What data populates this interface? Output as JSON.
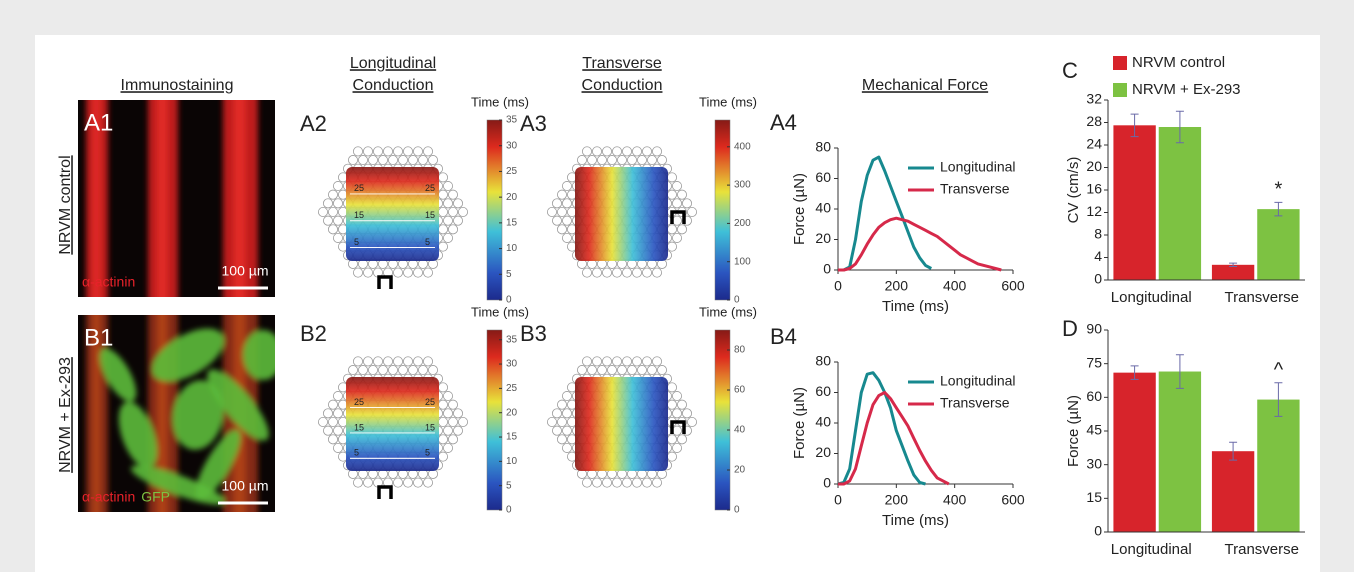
{
  "column_headers": [
    {
      "lines": [
        "Immunostaining"
      ]
    },
    {
      "lines": [
        "Longitudinal",
        "Conduction"
      ]
    },
    {
      "lines": [
        "Transverse",
        "Conduction"
      ]
    },
    {
      "lines": [
        "Mechanical Force"
      ]
    }
  ],
  "row_labels": [
    "NRVM control",
    "NRVM + Ex-293"
  ],
  "images": [
    {
      "label": "A1",
      "stains": [
        {
          "text": "α-actinin",
          "color": "#e8222a"
        }
      ],
      "scale_bar": "100 µm",
      "green": false
    },
    {
      "label": "B1",
      "stains": [
        {
          "text": "α-actinin",
          "color": "#e8222a"
        },
        {
          "text": "GFP",
          "color": "#7dc242"
        }
      ],
      "scale_bar": "100 µm",
      "green": true
    }
  ],
  "maps": [
    {
      "label": "A2",
      "colorbar_title": "Time (ms)",
      "colorbar_lim": [
        0,
        35
      ],
      "colorbar_ticks": [
        0,
        5,
        10,
        15,
        20,
        25,
        30,
        35
      ],
      "contour_labels": [
        25,
        25,
        15,
        15,
        5,
        5
      ],
      "direction": "longitudinal"
    },
    {
      "label": "A3",
      "colorbar_title": "Time (ms)",
      "colorbar_lim": [
        0,
        470
      ],
      "colorbar_ticks": [
        0,
        100,
        200,
        300,
        400
      ],
      "direction": "transverse"
    },
    {
      "label": "B2",
      "colorbar_title": "Time (ms)",
      "colorbar_lim": [
        0,
        37
      ],
      "colorbar_ticks": [
        0,
        5,
        10,
        15,
        20,
        25,
        30,
        35
      ],
      "contour_labels": [
        25,
        25,
        15,
        15,
        5,
        5
      ],
      "direction": "longitudinal"
    },
    {
      "label": "B3",
      "colorbar_title": "Time (ms)",
      "colorbar_lim": [
        0,
        90
      ],
      "colorbar_ticks": [
        0,
        20,
        40,
        60,
        80
      ],
      "direction": "transverse"
    }
  ],
  "chart_data": [
    {
      "type": "line",
      "panel_label": "A4",
      "xlabel": "Time (ms)",
      "ylabel": "Force (µN)",
      "xlim": [
        0,
        600
      ],
      "xticks": [
        0,
        200,
        400,
        600
      ],
      "ylim": [
        0,
        80
      ],
      "yticks": [
        0,
        20,
        40,
        60,
        80
      ],
      "x": [
        0,
        20,
        40,
        60,
        80,
        100,
        120,
        140,
        160,
        180,
        200,
        220,
        240,
        260,
        280,
        300,
        320,
        340,
        360,
        380,
        400,
        420,
        440,
        460,
        480,
        500,
        520,
        540,
        560
      ],
      "series": [
        {
          "name": "Longitudinal",
          "color": "#17898f",
          "values": [
            0,
            0,
            2,
            20,
            45,
            62,
            72,
            74,
            65,
            55,
            45,
            35,
            25,
            15,
            8,
            3,
            1,
            null,
            null,
            null,
            null,
            null,
            null,
            null,
            null,
            null,
            null,
            null,
            null
          ]
        },
        {
          "name": "Transverse",
          "color": "#d6294a",
          "values": [
            0,
            0,
            1,
            4,
            10,
            17,
            23,
            28,
            31,
            33,
            34,
            33,
            32,
            30,
            28,
            26,
            24,
            22,
            19,
            16,
            13,
            10,
            8,
            6,
            4,
            3,
            2,
            1,
            0
          ]
        }
      ]
    },
    {
      "type": "line",
      "panel_label": "B4",
      "xlabel": "Time (ms)",
      "ylabel": "Force (µN)",
      "xlim": [
        0,
        600
      ],
      "xticks": [
        0,
        200,
        400,
        600
      ],
      "ylim": [
        0,
        80
      ],
      "yticks": [
        0,
        20,
        40,
        60,
        80
      ],
      "x": [
        0,
        20,
        40,
        60,
        80,
        100,
        120,
        140,
        160,
        180,
        200,
        220,
        240,
        260,
        280,
        300,
        320,
        340,
        360,
        380
      ],
      "series": [
        {
          "name": "Longitudinal",
          "color": "#17898f",
          "values": [
            0,
            1,
            10,
            35,
            60,
            72,
            73,
            68,
            60,
            50,
            35,
            25,
            15,
            6,
            1,
            0,
            null,
            null,
            null,
            null
          ]
        },
        {
          "name": "Transverse",
          "color": "#d6294a",
          "values": [
            0,
            0,
            2,
            10,
            25,
            40,
            52,
            58,
            60,
            56,
            50,
            44,
            38,
            30,
            22,
            15,
            9,
            4,
            2,
            0
          ]
        }
      ]
    },
    {
      "type": "bar",
      "panel_label": "C",
      "ylabel": "CV (cm/s)",
      "legend": true,
      "categories": [
        "Longitudinal",
        "Transverse"
      ],
      "ylim": [
        0,
        32
      ],
      "yticks": [
        0,
        4,
        8,
        12,
        16,
        20,
        24,
        28,
        32
      ],
      "series": [
        {
          "name": "NRVM control",
          "color": "#d7242b",
          "values": [
            27.5,
            2.7
          ],
          "errors": [
            2,
            0.3
          ]
        },
        {
          "name": "NRVM + Ex-293",
          "color": "#7dc242",
          "values": [
            27.2,
            12.6
          ],
          "errors": [
            2.8,
            1.2
          ]
        }
      ],
      "annotations": [
        {
          "text": "*",
          "series": 1,
          "index": 1
        }
      ]
    },
    {
      "type": "bar",
      "panel_label": "D",
      "ylabel": "Force (µN)",
      "legend": false,
      "categories": [
        "Longitudinal",
        "Transverse"
      ],
      "ylim": [
        0,
        90
      ],
      "yticks": [
        0,
        15,
        30,
        45,
        60,
        75,
        90
      ],
      "series": [
        {
          "name": "NRVM control",
          "color": "#d7242b",
          "values": [
            71,
            36
          ],
          "errors": [
            3,
            4
          ]
        },
        {
          "name": "NRVM + Ex-293",
          "color": "#7dc242",
          "values": [
            71.5,
            59
          ],
          "errors": [
            7.5,
            7.5
          ]
        }
      ],
      "annotations": [
        {
          "text": "^",
          "series": 1,
          "index": 1
        }
      ]
    }
  ]
}
